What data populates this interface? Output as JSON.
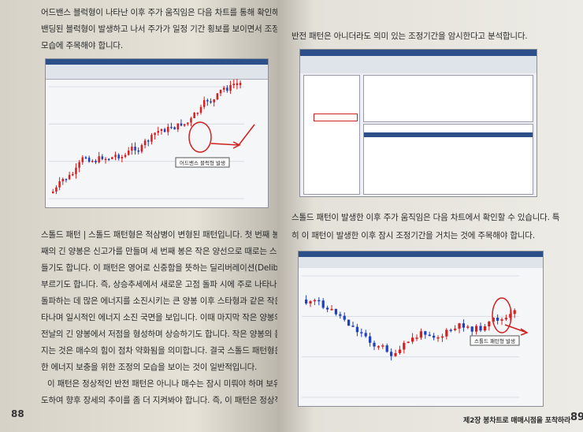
{
  "left_page": {
    "intro": [
      "어드밴스 블럭형이 나타난 이후 주가 움직임은 다음 차트를 통해 확인해 보자.",
      "밴딩된 블럭형이 발생하고 나서 주가가 일정 기간 횡보를 보이면서 조정을",
      "모습에 주목해야 합니다."
    ],
    "chart": {
      "annotation": "어드밴스 블럭형 발생"
    },
    "body": [
      "스톨드 패턴 | 스톨드 패턴형은 적삼병이 변형된 패턴입니다. 첫 번째 봉과 두 번",
      "째의 긴 양봉은 신고가를 만들며 세 번째 봉은 작은 양선으로 때로는 스타형을 만",
      "들기도 합니다. 이 패턴은 영어로 신중함을 뜻하는 딜리버레이션(Deliberation)형으로",
      "부르기도 합니다. 즉, 상승추세에서 새로운 고점 돌파 시에 주로 나타나고 고점을",
      "돌파하는 데 많은 에너지를 소진시키는 큰 양봉 이후 스타형과 같은 작은 봉이 나",
      "타나며 일시적인 에너지 소진 국면을 보입니다. 이때 마지막 작은 양봉의 몸통이",
      "전날의 긴 양봉에서 저점을 형성하며 상승하기도 합니다. 작은 양봉의 몸통이 작아",
      "지는 것은 매수의 힘이 점차 약화됨을 의미합니다. 결국 스톨드 패턴형은 고점 돌파를 위",
      "한 에너지 보충을 위한 조정의 모습을 보이는 것이 일반적입니다.",
      "이 패턴은 정상적인 반전 패턴은 아니나 매수는 잠시 미뤄야 하며 보유 주식을 정",
      "도하여 향후 장세의 추이를 좀 더 지켜봐야 합니다. 즉, 이 패턴은 정상적인 조"
    ],
    "page_number": "88"
  },
  "right_page": {
    "intro": "반전 패턴은 아니더라도 의미 있는 조정기간을 암시한다고 분석합니다.",
    "caption": [
      "스톨드 패턴이 발생한 이후 주가 움직임은 다음 차트에서 확인할 수 있습니다. 특",
      "히 이 패턴이 발생한 이후 잠시 조정기간을 거치는 것에 주목해야 합니다."
    ],
    "chart": {
      "annotation": "스톨드 패턴형 발생"
    },
    "footer": {
      "chapter": "제2장 봉차트로 매매시점을 포착하라",
      "page_number": "89"
    }
  }
}
